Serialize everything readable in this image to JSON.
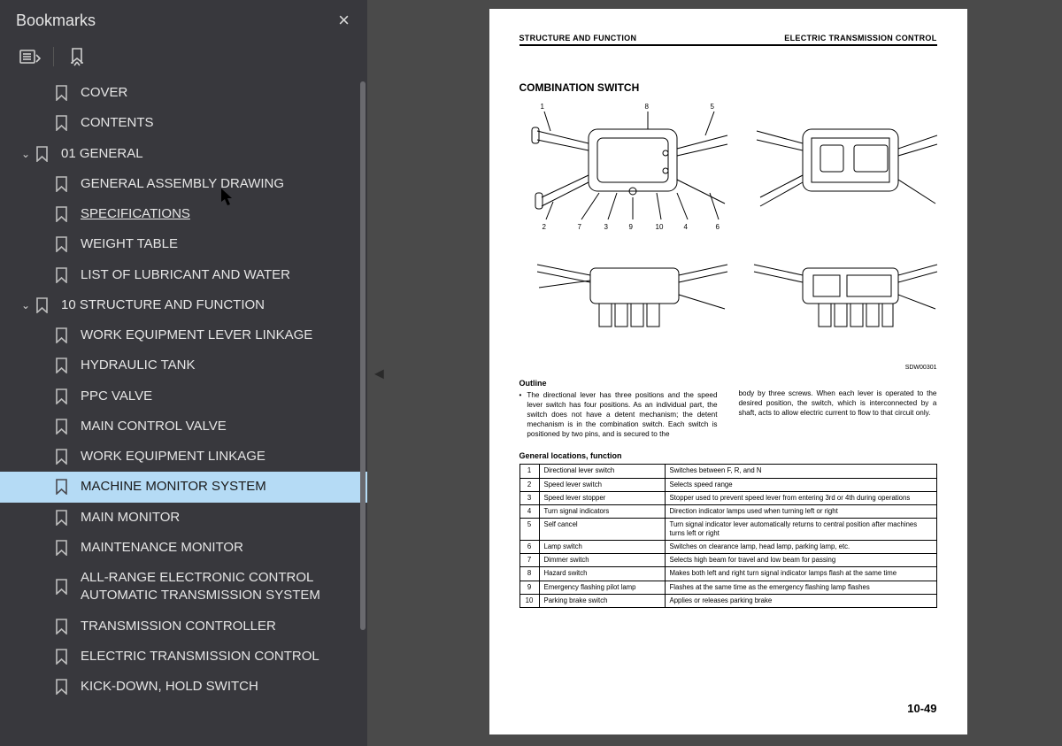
{
  "sidebar": {
    "title": "Bookmarks",
    "items": [
      {
        "label": "COVER",
        "indent": 1,
        "chevron": false
      },
      {
        "label": "CONTENTS",
        "indent": 1,
        "chevron": false
      },
      {
        "label": "01 GENERAL",
        "indent": 0,
        "chevron": true
      },
      {
        "label": "GENERAL ASSEMBLY DRAWING",
        "indent": 1,
        "chevron": false
      },
      {
        "label": "SPECIFICATIONS",
        "indent": 1,
        "chevron": false,
        "underlined": true
      },
      {
        "label": "WEIGHT TABLE",
        "indent": 1,
        "chevron": false
      },
      {
        "label": "LIST OF LUBRICANT AND WATER",
        "indent": 1,
        "chevron": false
      },
      {
        "label": "10 STRUCTURE AND FUNCTION",
        "indent": 0,
        "chevron": true
      },
      {
        "label": "WORK EQUIPMENT LEVER LINKAGE",
        "indent": 1,
        "chevron": false
      },
      {
        "label": "HYDRAULIC TANK",
        "indent": 1,
        "chevron": false
      },
      {
        "label": "PPC VALVE",
        "indent": 1,
        "chevron": false
      },
      {
        "label": "MAIN CONTROL VALVE",
        "indent": 1,
        "chevron": false
      },
      {
        "label": "WORK EQUIPMENT LINKAGE",
        "indent": 1,
        "chevron": false
      },
      {
        "label": "MACHINE MONITOR SYSTEM",
        "indent": 1,
        "chevron": false,
        "selected": true
      },
      {
        "label": "MAIN MONITOR",
        "indent": 1,
        "chevron": false
      },
      {
        "label": "MAINTENANCE MONITOR",
        "indent": 1,
        "chevron": false
      },
      {
        "label": "ALL-RANGE ELECTRONIC CONTROL AUTOMATIC TRANSMISSION SYSTEM",
        "indent": 1,
        "chevron": false
      },
      {
        "label": "TRANSMISSION CONTROLLER",
        "indent": 1,
        "chevron": false
      },
      {
        "label": "ELECTRIC TRANSMISSION CONTROL",
        "indent": 1,
        "chevron": false
      },
      {
        "label": "KICK-DOWN, HOLD SWITCH",
        "indent": 1,
        "chevron": false
      }
    ]
  },
  "page": {
    "header_left": "STRUCTURE AND FUNCTION",
    "header_right": "ELECTRIC TRANSMISSION CONTROL",
    "section_title": "COMBINATION SWITCH",
    "diagram_code": "SDW00301",
    "callouts_top": [
      "1",
      "2",
      "7",
      "3",
      "9",
      "10",
      "8",
      "4",
      "5",
      "6"
    ],
    "outline_heading": "Outline",
    "outline_left": "The directional lever has three positions and the speed lever switch has four positions. As an individual part, the switch does not have a detent mechanism; the detent mechanism is in the combination switch. Each switch is positioned by two pins, and is secured to the",
    "outline_right": "body by three screws. When each lever is operated to the desired position, the switch, which is interconnected by a shaft, acts to allow electric current to flow to that circuit only.",
    "table_title": "General locations, function",
    "rows": [
      {
        "n": "1",
        "name": "Directional lever switch",
        "desc": "Switches between F, R, and N"
      },
      {
        "n": "2",
        "name": "Speed lever switch",
        "desc": "Selects speed range"
      },
      {
        "n": "3",
        "name": "Speed lever stopper",
        "desc": "Stopper used to prevent speed lever from entering 3rd or 4th during operations"
      },
      {
        "n": "4",
        "name": "Turn signal indicators",
        "desc": "Direction indicator lamps used when turning left or right"
      },
      {
        "n": "5",
        "name": "Self cancel",
        "desc": "Turn signal indicator lever automatically returns to central position after machines turns left or right"
      },
      {
        "n": "6",
        "name": "Lamp switch",
        "desc": "Switches on clearance lamp, head lamp, parking lamp, etc."
      },
      {
        "n": "7",
        "name": "Dimmer switch",
        "desc": "Selects high beam for travel and low beam for passing"
      },
      {
        "n": "8",
        "name": "Hazard switch",
        "desc": "Makes both left and right turn signal indicator lamps flash at the same time"
      },
      {
        "n": "9",
        "name": "Emergency flashing pilot lamp",
        "desc": "Flashes at the same time as the emergency flashing lamp flashes"
      },
      {
        "n": "10",
        "name": "Parking brake switch",
        "desc": "Applies or releases parking brake"
      }
    ],
    "page_number": "10-49"
  },
  "colors": {
    "sidebar_bg": "#38383d",
    "selected_bg": "#b5dbf5",
    "page_bg": "#ffffff",
    "body_bg": "#4a4a4a"
  }
}
